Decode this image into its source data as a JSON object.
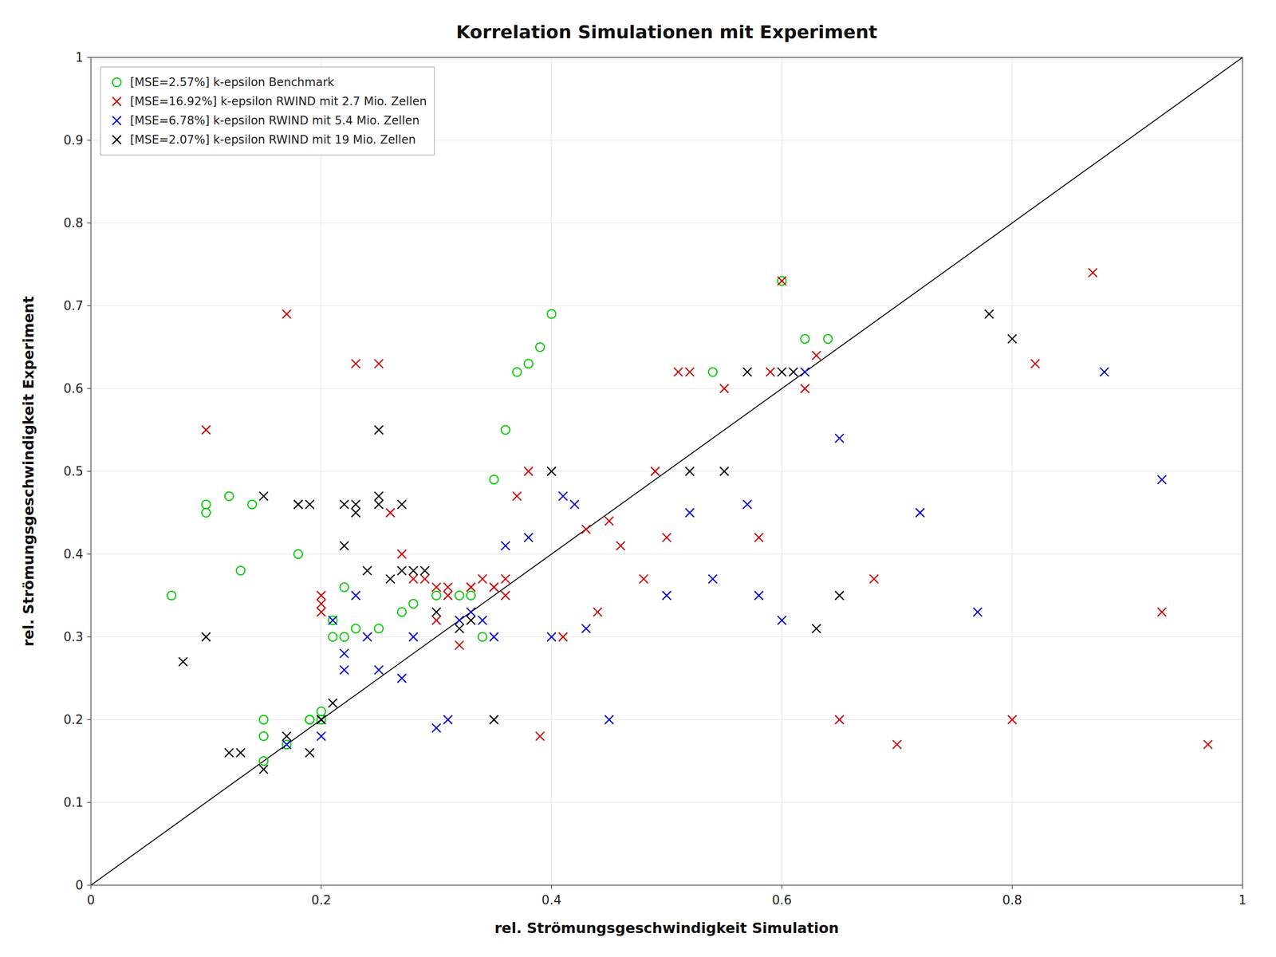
{
  "chart_data": {
    "type": "scatter",
    "title": "Korrelation Simulationen mit Experiment",
    "x_label": "rel. Strömungsgeschwindigkeit Simulation",
    "y_label": "rel. Strömungsgeschwindigkeit Experiment",
    "xlim": [
      0,
      1
    ],
    "ylim": [
      0,
      1
    ],
    "xticks": [
      0,
      0.2,
      0.4,
      0.6,
      0.8,
      1.0
    ],
    "yticks": [
      0,
      0.1,
      0.2,
      0.3,
      0.4,
      0.5,
      0.6,
      0.7,
      0.8,
      0.9,
      1.0
    ],
    "grid": true,
    "legend": "upper left",
    "reference_line": {
      "x": [
        0,
        1
      ],
      "values": [
        0,
        1
      ],
      "color": "#000000"
    },
    "series": [
      {
        "name": "[MSE=2.57%] k-epsilon Benchmark",
        "color": "#00cc00",
        "marker": "circle",
        "x": [
          0.07,
          0.1,
          0.1,
          0.12,
          0.13,
          0.14,
          0.15,
          0.15,
          0.15,
          0.17,
          0.18,
          0.19,
          0.19,
          0.2,
          0.2,
          0.21,
          0.21,
          0.22,
          0.22,
          0.23,
          0.25,
          0.27,
          0.28,
          0.3,
          0.32,
          0.33,
          0.34,
          0.35,
          0.36,
          0.37,
          0.38,
          0.39,
          0.4,
          0.54,
          0.6,
          0.62,
          0.64
        ],
        "values": [
          0.35,
          0.46,
          0.45,
          0.47,
          0.38,
          0.46,
          0.15,
          0.18,
          0.2,
          0.17,
          0.4,
          0.2,
          0.2,
          0.2,
          0.21,
          0.3,
          0.32,
          0.36,
          0.3,
          0.31,
          0.31,
          0.33,
          0.34,
          0.35,
          0.35,
          0.35,
          0.3,
          0.49,
          0.55,
          0.62,
          0.63,
          0.65,
          0.69,
          0.62,
          0.73,
          0.66,
          0.66
        ]
      },
      {
        "name": "[MSE=16.92%] k-epsilon RWIND mit 2.7 Mio. Zellen",
        "color": "#cc0000",
        "marker": "x",
        "x": [
          0.1,
          0.17,
          0.2,
          0.2,
          0.2,
          0.23,
          0.25,
          0.26,
          0.27,
          0.28,
          0.29,
          0.3,
          0.3,
          0.31,
          0.31,
          0.32,
          0.33,
          0.33,
          0.34,
          0.35,
          0.35,
          0.36,
          0.36,
          0.37,
          0.38,
          0.39,
          0.41,
          0.43,
          0.44,
          0.45,
          0.46,
          0.48,
          0.49,
          0.5,
          0.51,
          0.52,
          0.55,
          0.58,
          0.59,
          0.6,
          0.62,
          0.63,
          0.65,
          0.68,
          0.7,
          0.8,
          0.82,
          0.87,
          0.93,
          0.97
        ],
        "values": [
          0.55,
          0.69,
          0.33,
          0.34,
          0.35,
          0.63,
          0.63,
          0.45,
          0.4,
          0.37,
          0.37,
          0.32,
          0.36,
          0.35,
          0.36,
          0.29,
          0.36,
          0.36,
          0.37,
          0.36,
          0.36,
          0.35,
          0.37,
          0.47,
          0.5,
          0.18,
          0.3,
          0.43,
          0.33,
          0.44,
          0.41,
          0.37,
          0.5,
          0.42,
          0.62,
          0.62,
          0.6,
          0.42,
          0.62,
          0.73,
          0.6,
          0.64,
          0.2,
          0.37,
          0.17,
          0.2,
          0.63,
          0.74,
          0.33,
          0.17
        ]
      },
      {
        "name": "[MSE=6.78%] k-epsilon RWIND mit 5.4 Mio. Zellen",
        "color": "#0000cc",
        "marker": "x",
        "x": [
          0.17,
          0.2,
          0.2,
          0.21,
          0.22,
          0.22,
          0.23,
          0.24,
          0.25,
          0.27,
          0.28,
          0.3,
          0.31,
          0.32,
          0.33,
          0.34,
          0.35,
          0.36,
          0.38,
          0.4,
          0.41,
          0.42,
          0.43,
          0.45,
          0.5,
          0.52,
          0.54,
          0.57,
          0.58,
          0.6,
          0.62,
          0.65,
          0.72,
          0.77,
          0.88,
          0.93
        ],
        "values": [
          0.17,
          0.18,
          0.2,
          0.32,
          0.26,
          0.28,
          0.35,
          0.3,
          0.26,
          0.25,
          0.3,
          0.19,
          0.2,
          0.32,
          0.33,
          0.32,
          0.3,
          0.41,
          0.42,
          0.3,
          0.47,
          0.46,
          0.31,
          0.2,
          0.35,
          0.45,
          0.37,
          0.46,
          0.35,
          0.32,
          0.62,
          0.54,
          0.45,
          0.33,
          0.62,
          0.49
        ]
      },
      {
        "name": "[MSE=2.07%] k-epsilon RWIND mit 19 Mio. Zellen",
        "color": "#000000",
        "marker": "x",
        "x": [
          0.08,
          0.1,
          0.12,
          0.13,
          0.15,
          0.15,
          0.17,
          0.18,
          0.18,
          0.19,
          0.19,
          0.2,
          0.21,
          0.22,
          0.22,
          0.23,
          0.23,
          0.24,
          0.25,
          0.25,
          0.25,
          0.26,
          0.27,
          0.27,
          0.28,
          0.29,
          0.3,
          0.32,
          0.33,
          0.35,
          0.4,
          0.52,
          0.55,
          0.57,
          0.6,
          0.61,
          0.63,
          0.65,
          0.78,
          0.8
        ],
        "values": [
          0.27,
          0.3,
          0.16,
          0.16,
          0.14,
          0.47,
          0.18,
          0.46,
          0.46,
          0.46,
          0.16,
          0.2,
          0.22,
          0.41,
          0.46,
          0.45,
          0.46,
          0.38,
          0.46,
          0.47,
          0.55,
          0.37,
          0.38,
          0.46,
          0.38,
          0.38,
          0.33,
          0.31,
          0.32,
          0.2,
          0.5,
          0.5,
          0.5,
          0.62,
          0.62,
          0.62,
          0.31,
          0.35,
          0.69,
          0.66
        ]
      }
    ]
  }
}
